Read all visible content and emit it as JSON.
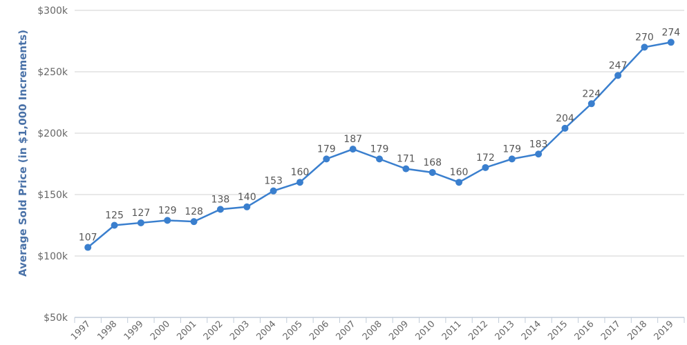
{
  "chart_data": {
    "type": "line",
    "title": "",
    "xlabel": "",
    "ylabel": "Average Sold Price (in $1,000 Increments)",
    "categories": [
      "1997",
      "1998",
      "1999",
      "2000",
      "2001",
      "2002",
      "2003",
      "2004",
      "2005",
      "2006",
      "2007",
      "2008",
      "2009",
      "2010",
      "2011",
      "2012",
      "2013",
      "2014",
      "2015",
      "2016",
      "2017",
      "2018",
      "2019"
    ],
    "series": [
      {
        "values": [
          107,
          125,
          127,
          129,
          128,
          138,
          140,
          153,
          160,
          179,
          187,
          179,
          171,
          168,
          160,
          172,
          179,
          183,
          204,
          224,
          247,
          270,
          274
        ]
      }
    ],
    "ylim": [
      50,
      300
    ],
    "yticks": [
      50,
      100,
      150,
      200,
      250,
      300
    ],
    "ytick_labels": [
      "$50k",
      "$100k",
      "$150k",
      "$200k",
      "$250k",
      "$300k"
    ],
    "grid": true,
    "legend": "none",
    "colors": {
      "line": "#3a7fce",
      "gridline": "#d0d0d0",
      "axis_title": "#4a72a8"
    }
  }
}
